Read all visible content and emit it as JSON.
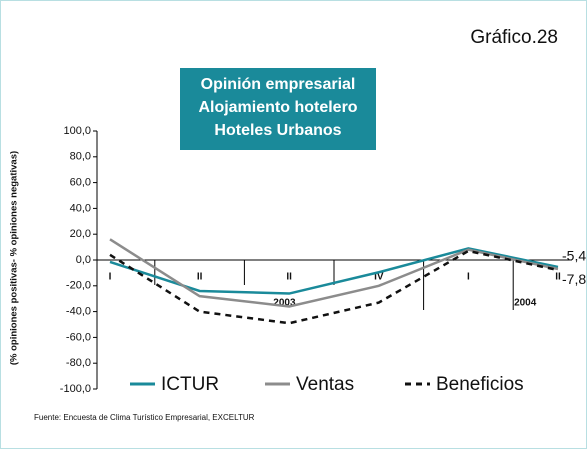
{
  "chart_data": {
    "type": "line",
    "corner_label": "Gráfico.28",
    "title": [
      "Opinión empresarial",
      "Alojamiento hotelero",
      "Hoteles Urbanos"
    ],
    "ylabel": "(% opiniones positivas- % opiniones negativas)",
    "categories": [
      "I",
      "II",
      "II",
      "IV",
      "I",
      "II"
    ],
    "years": [
      "2003",
      "2004"
    ],
    "series": [
      {
        "name": "ICTUR",
        "color": "#1a8a9a",
        "dashed": false,
        "values": [
          -1.5,
          -24,
          -26,
          -9.5,
          9,
          -5.4
        ],
        "value_labels": [
          null,
          null,
          null,
          null,
          null,
          "-5,4"
        ]
      },
      {
        "name": "Ventas",
        "color": "#8c8c8c",
        "dashed": false,
        "values": [
          16,
          -28,
          -36,
          -20,
          8,
          -7
        ]
      },
      {
        "name": "Beneficios",
        "color": "#111111",
        "dashed": true,
        "values": [
          4,
          -40,
          -49,
          -33,
          7,
          -7.8
        ],
        "value_labels": [
          null,
          null,
          null,
          null,
          null,
          "-7,8"
        ]
      }
    ],
    "ylim": [
      -100,
      100
    ],
    "yticks": [
      {
        "value": 100,
        "label": "100,0"
      },
      {
        "value": 80,
        "label": "80,0"
      },
      {
        "value": 60,
        "label": "60,0"
      },
      {
        "value": 40,
        "label": "40,0"
      },
      {
        "value": 20,
        "label": "20,0"
      },
      {
        "value": 0,
        "label": "0,0"
      },
      {
        "value": -20,
        "label": "-20,0"
      },
      {
        "value": -40,
        "label": "-40,0"
      },
      {
        "value": -60,
        "label": "-60,0"
      },
      {
        "value": -80,
        "label": "-80,0"
      },
      {
        "value": -100,
        "label": "-100,0"
      }
    ],
    "source": "Fuente: Encuesta de Clima Turístico Empresarial, EXCELTUR"
  }
}
